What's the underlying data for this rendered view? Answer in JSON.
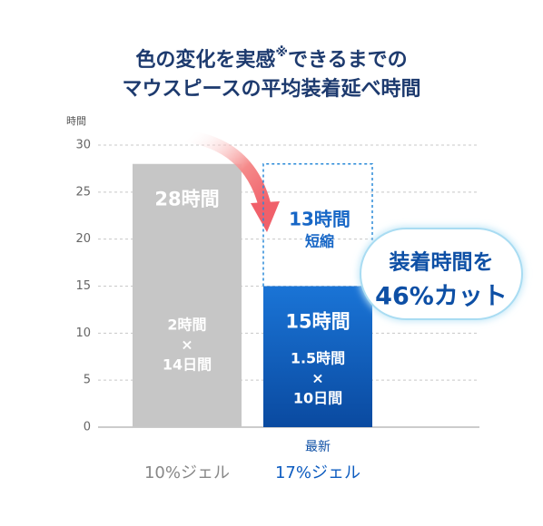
{
  "chart_data": {
    "type": "bar",
    "title_before_mark": "色の変化を実感",
    "title_mark": "※",
    "title_after_mark": "できるまでの",
    "title_line2": "マウスピースの平均装着延べ時間",
    "y_label": "時間",
    "categories": [
      "10%ジェル",
      "17%ジェル"
    ],
    "category_tags": [
      null,
      "最新"
    ],
    "values": [
      28,
      15
    ],
    "value_labels": [
      "28時間",
      "15時間"
    ],
    "colors": [
      "#c6c6c6",
      "#1a74d6"
    ],
    "bar_notes": [
      [
        "2時間",
        "×",
        "14日間"
      ],
      [
        "1.5時間",
        "×",
        "10日間"
      ]
    ],
    "annotation": [
      "13時間",
      "短縮"
    ],
    "badge": [
      "装着時間を",
      "46%カット"
    ],
    "ylim": [
      0,
      30
    ],
    "yticks": [
      0,
      5,
      10,
      15,
      20,
      25,
      30
    ],
    "grid": true
  }
}
